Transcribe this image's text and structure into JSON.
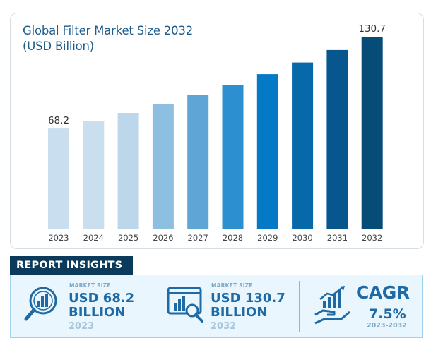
{
  "chart_data": {
    "type": "bar",
    "title": "Global Filter Market Size 2032 (USD Billion)",
    "categories": [
      "2023",
      "2024",
      "2025",
      "2026",
      "2027",
      "2028",
      "2029",
      "2030",
      "2031",
      "2032"
    ],
    "values": [
      68.2,
      73.3,
      78.8,
      84.7,
      91.1,
      97.9,
      105.2,
      113.1,
      121.6,
      130.7
    ],
    "data_labels": {
      "2023": "68.2",
      "2032": "130.7"
    },
    "colors": [
      "#c9dff0",
      "#c9dff0",
      "#bdd7ea",
      "#8dbfe0",
      "#5fa6d6",
      "#2b8fd0",
      "#0679c6",
      "#0768aa",
      "#07578e",
      "#074b77"
    ],
    "ylim": [
      0,
      130.7
    ],
    "grid": false
  },
  "insights": {
    "header": "REPORT INSIGHTS",
    "current": {
      "label": "MARKET SIZE",
      "value_line1": "USD 68.2",
      "value_line2": "BILLION",
      "year": "2023"
    },
    "forecast": {
      "label": "MARKET SIZE",
      "value_line1": "USD 130.7",
      "value_line2": "BILLION",
      "year": "2032"
    },
    "cagr": {
      "label": "CAGR",
      "value": "7.5%",
      "period": "2023-2032"
    },
    "icons": [
      "magnifier-chart-icon",
      "monitor-chart-icon",
      "hand-growth-chart-icon"
    ],
    "accent": "#1f6aa5"
  }
}
